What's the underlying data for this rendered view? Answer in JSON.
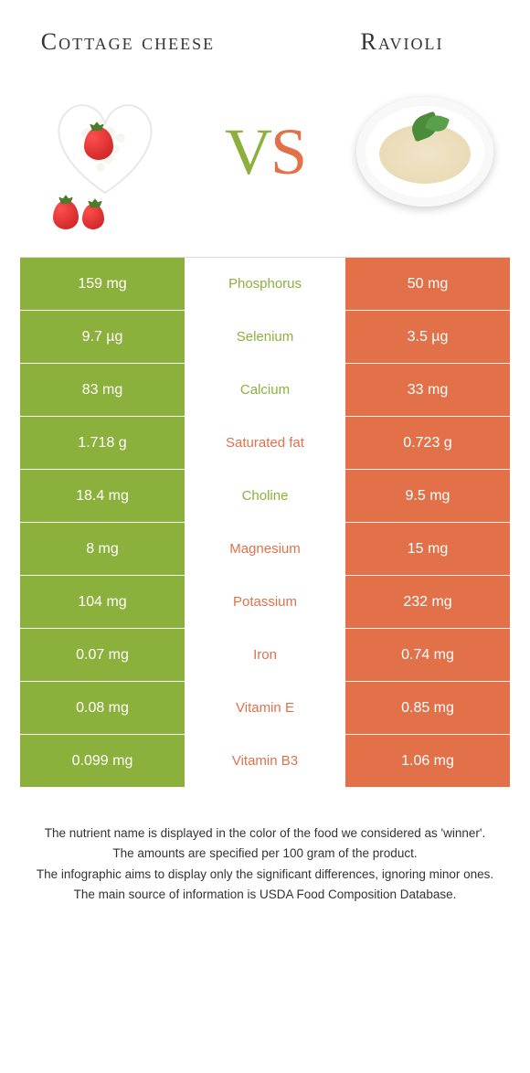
{
  "colors": {
    "green": "#8bb13c",
    "orange": "#e2714a",
    "white": "#ffffff",
    "text": "#333333"
  },
  "left": {
    "title": "Cottage cheese",
    "color": "#8bb13c"
  },
  "right": {
    "title": "Ravioli",
    "color": "#e2714a"
  },
  "vs": {
    "v": "V",
    "s": "S"
  },
  "rows": [
    {
      "nutrient": "Phosphorus",
      "left": "159 mg",
      "right": "50 mg",
      "winner": "left"
    },
    {
      "nutrient": "Selenium",
      "left": "9.7 µg",
      "right": "3.5 µg",
      "winner": "left"
    },
    {
      "nutrient": "Calcium",
      "left": "83 mg",
      "right": "33 mg",
      "winner": "left"
    },
    {
      "nutrient": "Saturated fat",
      "left": "1.718 g",
      "right": "0.723 g",
      "winner": "right"
    },
    {
      "nutrient": "Choline",
      "left": "18.4 mg",
      "right": "9.5 mg",
      "winner": "left"
    },
    {
      "nutrient": "Magnesium",
      "left": "8 mg",
      "right": "15 mg",
      "winner": "right"
    },
    {
      "nutrient": "Potassium",
      "left": "104 mg",
      "right": "232 mg",
      "winner": "right"
    },
    {
      "nutrient": "Iron",
      "left": "0.07 mg",
      "right": "0.74 mg",
      "winner": "right"
    },
    {
      "nutrient": "Vitamin E",
      "left": "0.08 mg",
      "right": "0.85 mg",
      "winner": "right"
    },
    {
      "nutrient": "Vitamin B3",
      "left": "0.099 mg",
      "right": "1.06 mg",
      "winner": "right"
    }
  ],
  "footer": [
    "The nutrient name is displayed in the color of the food we considered as 'winner'.",
    "The amounts are specified per 100 gram of the product.",
    "The infographic aims to display only the significant differences, ignoring minor ones.",
    "The main source of information is USDA Food Composition Database."
  ]
}
